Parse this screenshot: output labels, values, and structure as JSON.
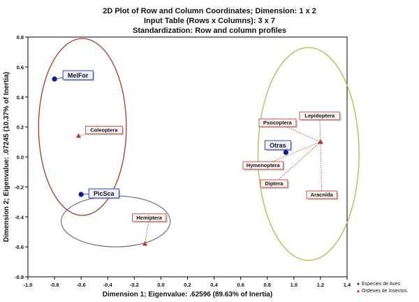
{
  "chart_data": {
    "type": "scatter",
    "title": "2D Plot of Row and Column Coordinates; Dimension:  1 x  2",
    "subtitle_1": "Input Table (Rows x Columns): 3 x 7",
    "subtitle_2": "Standardization: Row and column profiles",
    "xlabel": "Dimension 1; Eigenvalue: .62596 (89.63% of Inertia)",
    "ylabel": "Dimension 2; Eigenvalue: .07245 (10.37% of Inertia)",
    "xlim": [
      -1.0,
      1.4
    ],
    "ylim": [
      -0.8,
      0.8
    ],
    "x_ticks": [
      "-1.0",
      "-0.8",
      "-0.6",
      "-0.4",
      "-0.2",
      "0.0",
      "0.2",
      "0.4",
      "0.6",
      "0.8",
      "1.0",
      "1.2",
      "1.4"
    ],
    "y_ticks": [
      "0.8",
      "0.6",
      "0.4",
      "0.2",
      "0.0",
      "-0.2",
      "-0.4",
      "-0.6",
      "-0.8"
    ],
    "grid": false,
    "legend_position": "bottom-right",
    "series": [
      {
        "name": "Especies de Aves",
        "marker": "circle",
        "color": "#0a1f8f",
        "points": [
          {
            "label": "MelFor",
            "x": -0.8,
            "y": 0.52
          },
          {
            "label": "PicSca",
            "x": -0.6,
            "y": -0.25
          },
          {
            "label": "Otras",
            "x": 0.94,
            "y": 0.03
          }
        ]
      },
      {
        "name": "Ordenes de Insectos.",
        "marker": "triangle",
        "color": "#c0392b",
        "points": [
          {
            "label": "Coleoptera",
            "x": -0.62,
            "y": 0.14
          },
          {
            "label": "Hemiptera",
            "x": -0.12,
            "y": -0.58
          },
          {
            "label": "Lepidoptera",
            "x": 1.2,
            "y": 0.1
          },
          {
            "label": "Psocoptera",
            "x": 1.2,
            "y": 0.1
          },
          {
            "label": "Hymenoptera",
            "x": 1.2,
            "y": 0.1
          },
          {
            "label": "Diptera",
            "x": 1.2,
            "y": 0.1
          },
          {
            "label": "Aracnida",
            "x": 1.2,
            "y": 0.1
          }
        ]
      }
    ],
    "ellipses": [
      {
        "cx": -0.59,
        "cy": 0.2,
        "rx": 0.33,
        "ry": 0.59,
        "color": "#a33a2a"
      },
      {
        "cx": -0.34,
        "cy": -0.43,
        "rx": 0.41,
        "ry": 0.17,
        "color": "#777777"
      },
      {
        "cx": 1.11,
        "cy": 0.02,
        "rx": 0.38,
        "ry": 0.71,
        "color": "#b5b844"
      }
    ]
  }
}
